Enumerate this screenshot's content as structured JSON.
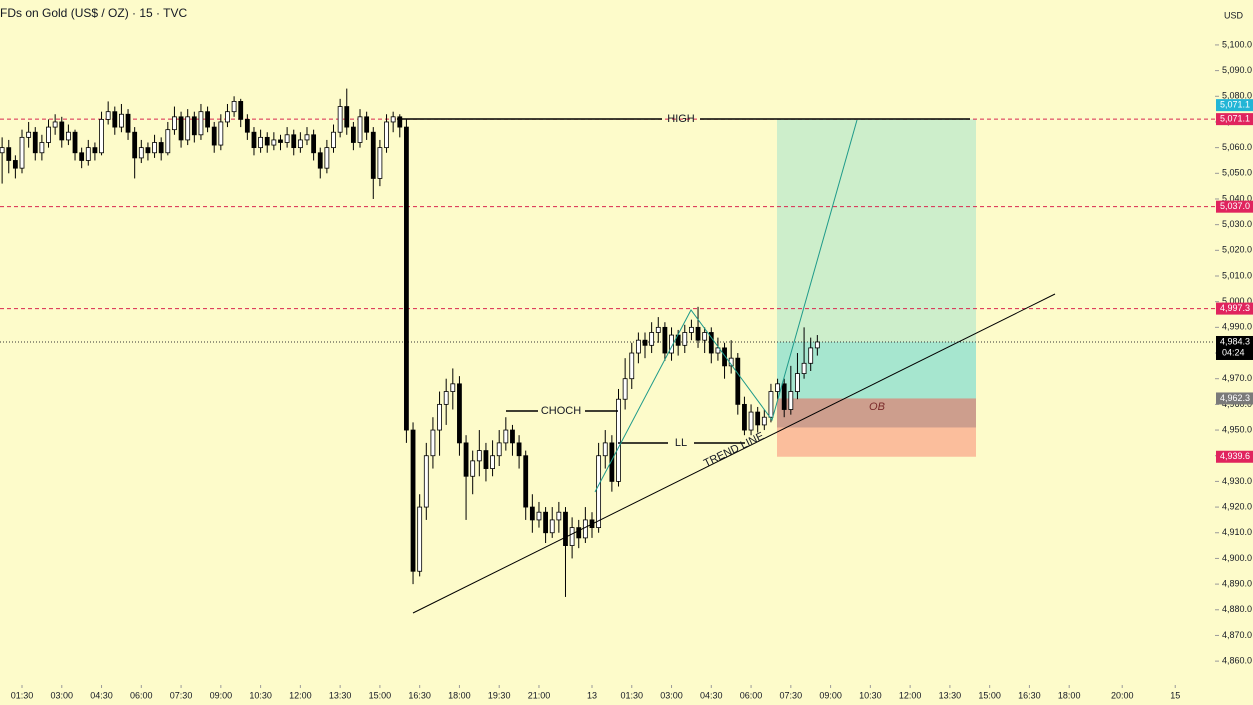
{
  "chart_data": {
    "type": "candlestick",
    "title": "FDs on Gold (US$ / OZ) · 15 · TVC",
    "currency": "USD",
    "xlim": [
      -3.32,
      180
    ],
    "ylim": [
      4850.7,
      5117.5
    ],
    "xticks": [
      {
        "value": 0,
        "label": "01:30"
      },
      {
        "value": 6,
        "label": "03:00"
      },
      {
        "value": 12,
        "label": "04:30"
      },
      {
        "value": 18,
        "label": "06:00"
      },
      {
        "value": 24,
        "label": "07:30"
      },
      {
        "value": 30,
        "label": "09:00"
      },
      {
        "value": 36,
        "label": "10:30"
      },
      {
        "value": 42,
        "label": "12:00"
      },
      {
        "value": 48,
        "label": "13:30"
      },
      {
        "value": 54,
        "label": "15:00"
      },
      {
        "value": 60,
        "label": "16:30"
      },
      {
        "value": 66,
        "label": "18:00"
      },
      {
        "value": 72,
        "label": "19:30"
      },
      {
        "value": 78,
        "label": "21:00"
      },
      {
        "value": 86,
        "label": "13"
      },
      {
        "value": 92,
        "label": "01:30"
      },
      {
        "value": 98,
        "label": "03:00"
      },
      {
        "value": 104,
        "label": "04:30"
      },
      {
        "value": 110,
        "label": "06:00"
      },
      {
        "value": 116,
        "label": "07:30"
      },
      {
        "value": 122,
        "label": "09:00"
      },
      {
        "value": 128,
        "label": "10:30"
      },
      {
        "value": 134,
        "label": "12:00"
      },
      {
        "value": 140,
        "label": "13:30"
      },
      {
        "value": 146,
        "label": "15:00"
      },
      {
        "value": 152,
        "label": "16:30"
      },
      {
        "value": 158,
        "label": "18:00"
      },
      {
        "value": 166,
        "label": "20:00"
      },
      {
        "value": 174,
        "label": "15"
      }
    ],
    "yticks": [
      {
        "value": 5100,
        "label": "5,100.0"
      },
      {
        "value": 5090,
        "label": "5,090.0"
      },
      {
        "value": 5080,
        "label": "5,080.0"
      },
      {
        "value": 5070,
        "label": "5,070.0"
      },
      {
        "value": 5060,
        "label": "5,060.0"
      },
      {
        "value": 5050,
        "label": "5,050.0"
      },
      {
        "value": 5040,
        "label": "5,040.0"
      },
      {
        "value": 5030,
        "label": "5,030.0"
      },
      {
        "value": 5020,
        "label": "5,020.0"
      },
      {
        "value": 5010,
        "label": "5,010.0"
      },
      {
        "value": 5000,
        "label": "5,000.0"
      },
      {
        "value": 4990,
        "label": "4,990.0"
      },
      {
        "value": 4980,
        "label": "4,980.0"
      },
      {
        "value": 4970,
        "label": "4,970.0"
      },
      {
        "value": 4960,
        "label": "4,960.0"
      },
      {
        "value": 4950,
        "label": "4,950.0"
      },
      {
        "value": 4940,
        "label": "4,940.0"
      },
      {
        "value": 4930,
        "label": "4,930.0"
      },
      {
        "value": 4920,
        "label": "4,920.0"
      },
      {
        "value": 4910,
        "label": "4,910.0"
      },
      {
        "value": 4900,
        "label": "4,900.0"
      },
      {
        "value": 4890,
        "label": "4,890.0"
      },
      {
        "value": 4880,
        "label": "4,880.0"
      },
      {
        "value": 4870,
        "label": "4,870.0"
      },
      {
        "value": 4860,
        "label": "4,860.0"
      }
    ],
    "x": [
      -3,
      -2,
      -1,
      0,
      1,
      2,
      3,
      4,
      5,
      6,
      7,
      8,
      9,
      10,
      11,
      12,
      13,
      14,
      15,
      16,
      17,
      18,
      19,
      20,
      21,
      22,
      23,
      24,
      25,
      26,
      27,
      28,
      29,
      30,
      31,
      32,
      33,
      34,
      35,
      36,
      37,
      38,
      39,
      40,
      41,
      42,
      43,
      44,
      45,
      46,
      47,
      48,
      49,
      50,
      51,
      52,
      53,
      54,
      55,
      56,
      57,
      58,
      59,
      60,
      61,
      62,
      63,
      64,
      65,
      66,
      67,
      68,
      69,
      70,
      71,
      72,
      73,
      74,
      75,
      76,
      77,
      78,
      79,
      80,
      81,
      82,
      83,
      84,
      85,
      86,
      87,
      88,
      89,
      90,
      91,
      92,
      93,
      94,
      95,
      96,
      97,
      98,
      99,
      100,
      101,
      102,
      103,
      104,
      105,
      106,
      107,
      108,
      109,
      110,
      111,
      112,
      113,
      114,
      115,
      116,
      117,
      118,
      119,
      120
    ],
    "ohlc": [
      [
        5058,
        5064,
        5046,
        5060
      ],
      [
        5060,
        5063,
        5050,
        5055
      ],
      [
        5055,
        5057,
        5048,
        5052
      ],
      [
        5052,
        5067,
        5050,
        5064
      ],
      [
        5064,
        5070,
        5060,
        5066
      ],
      [
        5066,
        5068,
        5055,
        5058
      ],
      [
        5058,
        5065,
        5055,
        5062
      ],
      [
        5062,
        5071,
        5060,
        5068
      ],
      [
        5068,
        5073,
        5065,
        5070
      ],
      [
        5070,
        5072,
        5060,
        5063
      ],
      [
        5063,
        5069,
        5061,
        5066
      ],
      [
        5066,
        5067,
        5055,
        5058
      ],
      [
        5058,
        5060,
        5052,
        5055
      ],
      [
        5055,
        5063,
        5053,
        5060
      ],
      [
        5060,
        5062,
        5055,
        5058
      ],
      [
        5058,
        5074,
        5057,
        5071
      ],
      [
        5071,
        5078,
        5069,
        5074
      ],
      [
        5074,
        5076,
        5065,
        5068
      ],
      [
        5068,
        5077,
        5066,
        5073
      ],
      [
        5073,
        5075,
        5063,
        5066
      ],
      [
        5066,
        5068,
        5048,
        5056
      ],
      [
        5056,
        5063,
        5054,
        5060
      ],
      [
        5060,
        5062,
        5055,
        5058
      ],
      [
        5058,
        5065,
        5056,
        5062
      ],
      [
        5062,
        5064,
        5055,
        5058
      ],
      [
        5058,
        5070,
        5057,
        5067
      ],
      [
        5067,
        5076,
        5065,
        5072
      ],
      [
        5072,
        5074,
        5060,
        5063
      ],
      [
        5063,
        5075,
        5061,
        5072
      ],
      [
        5072,
        5074,
        5062,
        5065
      ],
      [
        5065,
        5077,
        5063,
        5074
      ],
      [
        5074,
        5076,
        5066,
        5068
      ],
      [
        5068,
        5070,
        5058,
        5061
      ],
      [
        5061,
        5073,
        5059,
        5070
      ],
      [
        5070,
        5077,
        5068,
        5074
      ],
      [
        5074,
        5080,
        5072,
        5078
      ],
      [
        5078,
        5079,
        5068,
        5071
      ],
      [
        5071,
        5073,
        5063,
        5066
      ],
      [
        5066,
        5068,
        5057,
        5060
      ],
      [
        5060,
        5067,
        5058,
        5064
      ],
      [
        5064,
        5066,
        5058,
        5061
      ],
      [
        5061,
        5066,
        5059,
        5063
      ],
      [
        5063,
        5065,
        5059,
        5062
      ],
      [
        5062,
        5068,
        5060,
        5065
      ],
      [
        5065,
        5067,
        5057,
        5060
      ],
      [
        5060,
        5066,
        5058,
        5063
      ],
      [
        5063,
        5068,
        5061,
        5065
      ],
      [
        5065,
        5067,
        5055,
        5058
      ],
      [
        5058,
        5060,
        5048,
        5052
      ],
      [
        5052,
        5063,
        5050,
        5060
      ],
      [
        5060,
        5069,
        5058,
        5066
      ],
      [
        5066,
        5079,
        5064,
        5076
      ],
      [
        5076,
        5083,
        5065,
        5068
      ],
      [
        5068,
        5070,
        5059,
        5062
      ],
      [
        5062,
        5075,
        5060,
        5072
      ],
      [
        5072,
        5074,
        5063,
        5066
      ],
      [
        5066,
        5068,
        5040,
        5048
      ],
      [
        5048,
        5063,
        5045,
        5060
      ],
      [
        5060,
        5073,
        5058,
        5070
      ],
      [
        5070,
        5074,
        5066,
        5072
      ],
      [
        5072,
        5073,
        5064,
        5068
      ],
      [
        5068,
        5071,
        4945,
        4950
      ],
      [
        4950,
        4953,
        4890,
        4895
      ],
      [
        4895,
        4925,
        4893,
        4920
      ],
      [
        4920,
        4945,
        4915,
        4940
      ],
      [
        4940,
        4955,
        4935,
        4950
      ],
      [
        4950,
        4965,
        4940,
        4960
      ],
      [
        4960,
        4970,
        4952,
        4965
      ],
      [
        4965,
        4974,
        4958,
        4968
      ],
      [
        4968,
        4971,
        4940,
        4945
      ],
      [
        4945,
        4948,
        4915,
        4932
      ],
      [
        4932,
        4942,
        4925,
        4938
      ],
      [
        4938,
        4950,
        4932,
        4942
      ],
      [
        4942,
        4945,
        4930,
        4935
      ],
      [
        4935,
        4946,
        4932,
        4940
      ],
      [
        4940,
        4950,
        4936,
        4945
      ],
      [
        4945,
        4955,
        4942,
        4950
      ],
      [
        4950,
        4952,
        4940,
        4945
      ],
      [
        4945,
        4948,
        4935,
        4940
      ],
      [
        4940,
        4942,
        4915,
        4920
      ],
      [
        4920,
        4925,
        4910,
        4915
      ],
      [
        4915,
        4922,
        4912,
        4918
      ],
      [
        4918,
        4920,
        4906,
        4910
      ],
      [
        4910,
        4920,
        4908,
        4915
      ],
      [
        4915,
        4922,
        4910,
        4918
      ],
      [
        4918,
        4920,
        4885,
        4905
      ],
      [
        4905,
        4916,
        4900,
        4912
      ],
      [
        4912,
        4915,
        4904,
        4908
      ],
      [
        4908,
        4920,
        4906,
        4915
      ],
      [
        4915,
        4918,
        4908,
        4912
      ],
      [
        4912,
        4945,
        4910,
        4940
      ],
      [
        4940,
        4950,
        4935,
        4945
      ],
      [
        4945,
        4948,
        4926,
        4930
      ],
      [
        4930,
        4966,
        4928,
        4962
      ],
      [
        4962,
        4978,
        4958,
        4970
      ],
      [
        4970,
        4984,
        4966,
        4980
      ],
      [
        4980,
        4988,
        4976,
        4985
      ],
      [
        4985,
        4988,
        4978,
        4983
      ],
      [
        4983,
        4992,
        4980,
        4988
      ],
      [
        4988,
        4994,
        4984,
        4990
      ],
      [
        4990,
        4992,
        4977,
        4980
      ],
      [
        4980,
        4990,
        4977,
        4987
      ],
      [
        4987,
        4989,
        4979,
        4983
      ],
      [
        4983,
        4991,
        4980,
        4988
      ],
      [
        4988,
        4993,
        4985,
        4990
      ],
      [
        4990,
        4998,
        4982,
        4985
      ],
      [
        4985,
        4990,
        4980,
        4988
      ],
      [
        4988,
        4990,
        4976,
        4980
      ],
      [
        4980,
        4986,
        4977,
        4982
      ],
      [
        4982,
        4984,
        4970,
        4975
      ],
      [
        4975,
        4985,
        4972,
        4978
      ],
      [
        4978,
        4980,
        4956,
        4960
      ],
      [
        4960,
        4963,
        4948,
        4950
      ],
      [
        4950,
        4960,
        4948,
        4957
      ],
      [
        4957,
        4959,
        4949,
        4952
      ],
      [
        4952,
        4958,
        4950,
        4955
      ],
      [
        4955,
        4968,
        4953,
        4965
      ],
      [
        4965,
        4970,
        4962,
        4968
      ],
      [
        4968,
        4970,
        4955,
        4958
      ],
      [
        4958,
        4975,
        4956,
        4965
      ],
      [
        4965,
        4980,
        4962,
        4972
      ],
      [
        4972,
        4990,
        4970,
        4976
      ],
      [
        4976,
        4986,
        4973,
        4982
      ],
      [
        4982,
        4987,
        4979,
        4984.3
      ]
    ],
    "up_color": "#ffffff",
    "down_color": "#000000",
    "price_lines": [
      {
        "value": 5071.1,
        "color": "#d9274f",
        "style": "dashed"
      },
      {
        "value": 5037.0,
        "color": "#d9274f",
        "style": "dashed"
      },
      {
        "value": 4997.3,
        "color": "#d9274f",
        "style": "dashed"
      },
      {
        "value": 4984.3,
        "color": "#333333",
        "style": "dotted"
      }
    ],
    "price_labels": [
      {
        "value": 5071.1,
        "label": "5,071.1",
        "color": "#22b5d6"
      },
      {
        "value": 5071.1,
        "label": "5,071.1",
        "color": "#e0245e"
      },
      {
        "value": 5037.0,
        "label": "5,037.0",
        "color": "#e0245e"
      },
      {
        "value": 4997.3,
        "label": "4,997.3",
        "color": "#e0245e"
      },
      {
        "value": 4984.3,
        "label": "4,984.3",
        "color": "#000000",
        "countdown": "04:24"
      },
      {
        "value": 4962.3,
        "label": "4,962.3",
        "color": "#7a7a7a"
      },
      {
        "value": 4939.6,
        "label": "4,939.6",
        "color": "#e0245e"
      }
    ],
    "position": {
      "target": 5071.1,
      "entry": 4962.3,
      "stop": 4939.6,
      "current": 4984.3
    },
    "annotations": {
      "high": "HIGH",
      "choch": "CHOCH",
      "ll": "LL",
      "trend": "TREND LINE",
      "ob": "OB"
    }
  }
}
